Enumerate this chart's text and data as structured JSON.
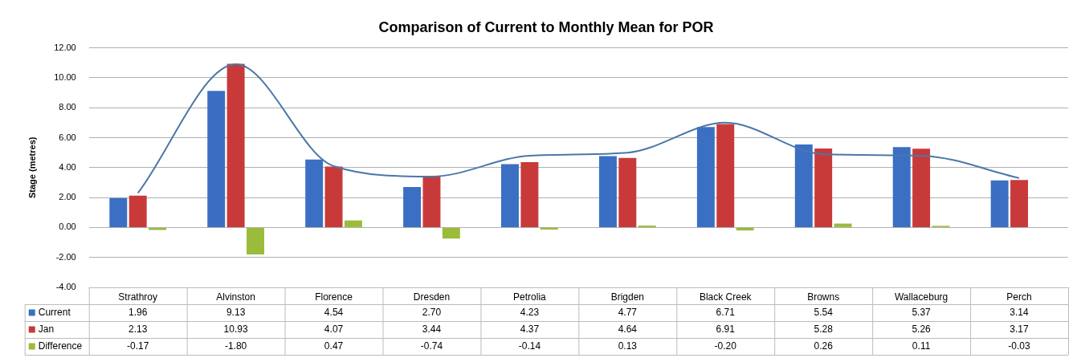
{
  "chart_data": {
    "type": "bar",
    "title": "Comparison of Current to Monthly Mean for POR",
    "ylabel": "Stage (metres)",
    "categories": [
      "Strathroy",
      "Alvinston",
      "Florence",
      "Dresden",
      "Petrolia",
      "Brigden",
      "Black Creek",
      "Browns",
      "Wallaceburg",
      "Perch"
    ],
    "series": [
      {
        "name": "Current",
        "color": "#3a6fc4",
        "values": [
          1.96,
          9.13,
          4.54,
          2.7,
          4.23,
          4.77,
          6.71,
          5.54,
          5.37,
          3.14
        ],
        "value_labels": [
          "1.96",
          "9.13",
          "4.54",
          "2.70",
          "4.23",
          "4.77",
          "6.71",
          "5.54",
          "5.37",
          "3.14"
        ]
      },
      {
        "name": "Jan",
        "color": "#c83a3a",
        "values": [
          2.13,
          10.93,
          4.07,
          3.44,
          4.37,
          4.64,
          6.91,
          5.28,
          5.26,
          3.17
        ],
        "value_labels": [
          "2.13",
          "10.93",
          "4.07",
          "3.44",
          "4.37",
          "4.64",
          "6.91",
          "5.28",
          "5.26",
          "3.17"
        ]
      },
      {
        "name": "Difference",
        "color": "#9bbb3a",
        "values": [
          -0.17,
          -1.8,
          0.47,
          -0.74,
          -0.14,
          0.13,
          -0.2,
          0.26,
          0.11,
          -0.03
        ],
        "value_labels": [
          "-0.17",
          "-1.80",
          "0.47",
          "-0.74",
          "-0.14",
          "0.13",
          "-0.20",
          "0.26",
          "0.11",
          "-0.03"
        ]
      },
      {
        "type": "line",
        "color": "#4a78a8",
        "values": [
          2.3,
          10.9,
          4.1,
          3.4,
          4.8,
          5.0,
          7.0,
          4.9,
          4.8,
          3.3
        ]
      }
    ],
    "ylim": [
      -4,
      12
    ],
    "yticks": [
      {
        "value": -4,
        "label": "-4.00"
      },
      {
        "value": -2,
        "label": "-2.00"
      },
      {
        "value": 0,
        "label": "0.00"
      },
      {
        "value": 2,
        "label": "2.00"
      },
      {
        "value": 4,
        "label": "4.00"
      },
      {
        "value": 6,
        "label": "6.00"
      },
      {
        "value": 8,
        "label": "8.00"
      },
      {
        "value": 10,
        "label": "10.00"
      },
      {
        "value": 12,
        "label": "12.00"
      }
    ],
    "grid": "y",
    "legend": "bottom"
  }
}
